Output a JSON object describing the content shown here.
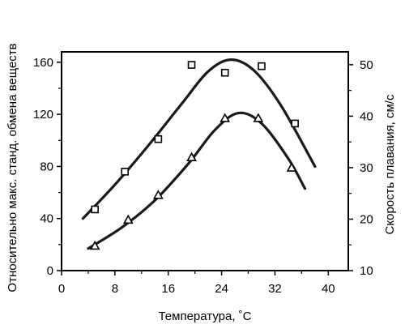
{
  "chart_data": {
    "type": "scatter",
    "title": "",
    "xlabel": "Температура, ˚С",
    "ylabel_left": "Относительно макс. станд. обмена веществ",
    "ylabel_right": "Скорость плавания, см/с",
    "xlim": [
      0,
      43
    ],
    "ylim_left": [
      0,
      168
    ],
    "ylim_right": [
      10,
      52.5
    ],
    "x_ticks": [
      0,
      8,
      16,
      24,
      32,
      40
    ],
    "x_tick_labels": [
      "0",
      "8",
      "16",
      "24",
      "32",
      "40"
    ],
    "y_left_ticks": [
      0,
      40,
      80,
      120,
      160
    ],
    "y_left_tick_labels": [
      "0",
      "40",
      "80",
      "120",
      "160"
    ],
    "y_right_ticks": [
      10,
      20,
      30,
      40,
      50
    ],
    "y_right_tick_labels": [
      "10",
      "20",
      "30",
      "40",
      "50"
    ],
    "grid": false,
    "legend": "none",
    "series": [
      {
        "axis": "left",
        "marker": "square",
        "points": [
          {
            "x": 5,
            "y": 47
          },
          {
            "x": 9.5,
            "y": 76
          },
          {
            "x": 14.5,
            "y": 101
          },
          {
            "x": 19.5,
            "y": 158
          },
          {
            "x": 24.5,
            "y": 152
          },
          {
            "x": 30,
            "y": 157
          },
          {
            "x": 35,
            "y": 113
          }
        ],
        "curve": [
          {
            "x": 3.2,
            "y": 40
          },
          {
            "x": 8,
            "y": 66
          },
          {
            "x": 13,
            "y": 96
          },
          {
            "x": 18,
            "y": 128
          },
          {
            "x": 22,
            "y": 153
          },
          {
            "x": 25.5,
            "y": 162
          },
          {
            "x": 29,
            "y": 153
          },
          {
            "x": 33,
            "y": 126
          },
          {
            "x": 38,
            "y": 80
          }
        ]
      },
      {
        "axis": "left",
        "marker": "triangle",
        "points": [
          {
            "x": 5,
            "y": 19
          },
          {
            "x": 10,
            "y": 39
          },
          {
            "x": 14.5,
            "y": 58
          },
          {
            "x": 19.5,
            "y": 87
          },
          {
            "x": 24.5,
            "y": 117
          },
          {
            "x": 29.5,
            "y": 117
          },
          {
            "x": 34.5,
            "y": 79
          }
        ],
        "curve": [
          {
            "x": 4,
            "y": 17
          },
          {
            "x": 9,
            "y": 33
          },
          {
            "x": 14,
            "y": 54
          },
          {
            "x": 19,
            "y": 82
          },
          {
            "x": 23,
            "y": 108
          },
          {
            "x": 26.5,
            "y": 121
          },
          {
            "x": 30,
            "y": 113
          },
          {
            "x": 34,
            "y": 86
          },
          {
            "x": 36.5,
            "y": 63
          }
        ]
      }
    ]
  }
}
